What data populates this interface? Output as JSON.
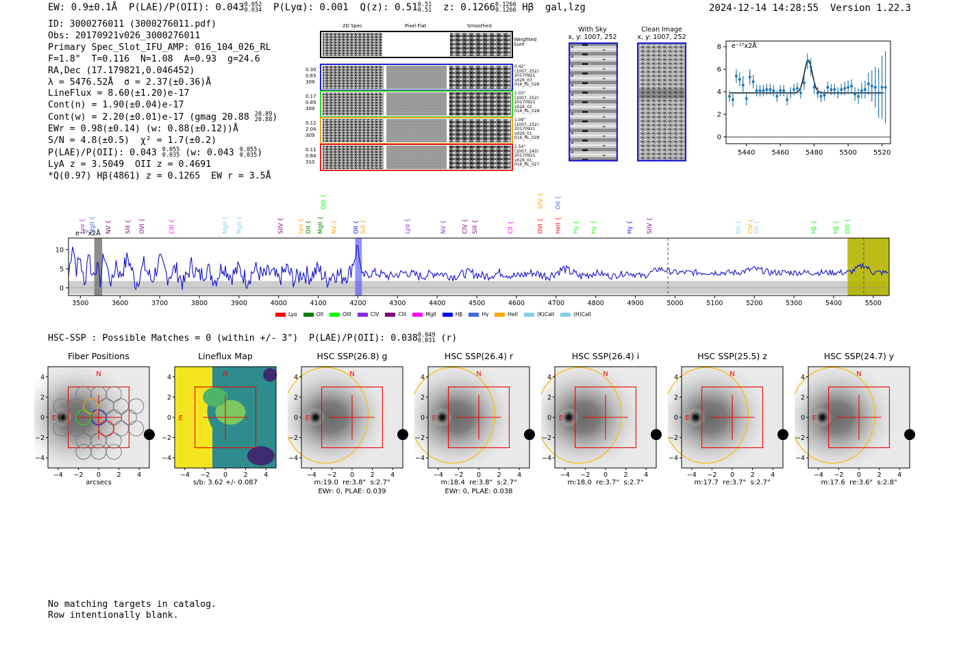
{
  "header": {
    "ew": "EW: 0.9±0.1Å",
    "plae": "P(LAE)/P(OII): 0.043",
    "plae_hi": "0.052",
    "plae_lo": "0.034",
    "plya": "P(Lyα): 0.001",
    "qz": "Q(z): 0.51",
    "qz_hi": "0.51",
    "qz_lo": "0.51",
    "z": "z: 0.1266",
    "z_hi": "0.1266",
    "z_lo": "0.1266",
    "z_tail": "Hβ  gal,lzg",
    "timestamp": "2024-12-14 14:28:55",
    "version": "Version 1.22.3"
  },
  "info": {
    "id": "ID: 3000276011 (3000276011.pdf)",
    "obs": "Obs: 20170921v026_3000276011",
    "primary": "Primary Spec_Slot_IFU_AMP: 016_104_026_RL",
    "fparams": "F=1.8\"  T=0.116  N=1.08  A=0.93  g=24.6",
    "radec": "RA,Dec (17.179821,0.046452)",
    "lambda": "λ = 5476.52Å  σ = 2.37(±0.36)Å",
    "lineflux": "LineFlux = 8.60(±1.20)e-17",
    "contn": "Cont(n) = 1.90(±0.04)e-17",
    "contw": "Cont(w) = 2.20(±0.01)e-17 (gmag 20.88",
    "contw_hi": "20.89",
    "contw_lo": "20.88",
    "contw_tail": ")",
    "ewr": "EWr = 0.98(±0.14) (w: 0.88(±0.12))Å",
    "sn": "S/N = 4.8(±0.5)  χ² = 1.7(±0.2)",
    "plae": "P(LAE)/P(OII): 0.043",
    "plae_hi": "0.055",
    "plae_lo": "0.035",
    "plae_w": " (w: 0.043",
    "plae_w_hi": "0.055",
    "plae_w_lo": "0.035",
    "plae_tail": ")",
    "lya": "LyA z = 3.5049  OII z = 0.4691",
    "q": "*Q(0.97) Hβ(4861) z = 0.1265  EW r = 3.5Å"
  },
  "cutouts": {
    "col_2dspec": "2D Spec",
    "col_pixflat": "Pixel Flat",
    "col_smoothed": "Smoothed",
    "weighted_sum": "Weighted\nSum",
    "rows": [
      {
        "left": [
          "0.30",
          "0.65",
          "309"
        ],
        "right": [
          "0.42\"",
          "(1007, 252)",
          "20170921",
          "v026_03",
          "016_RL_028"
        ],
        "color": "#1f1fcc"
      },
      {
        "left": [
          "0.17",
          "0.85",
          "309"
        ],
        "right": [
          "1.03\"",
          "(1007, 252)",
          "20170921",
          "v026_02",
          "016_RL_028"
        ],
        "color": "#2bd12b"
      },
      {
        "left": [
          "0.12",
          "2.04",
          "309"
        ],
        "right": [
          "1.09\"",
          "(1007, 252)",
          "20170921",
          "v026_01",
          "016_RL_028"
        ],
        "color": "#f0a020"
      },
      {
        "left": [
          "0.11",
          "0.84",
          "310"
        ],
        "right": [
          "1.54\"",
          "(1007, 243)",
          "20170921",
          "v026_01",
          "016_RL_027"
        ],
        "color": "#e02020"
      }
    ]
  },
  "sky": {
    "with_sky": "With Sky",
    "with_sky_xy": "x, y: 1007, 252",
    "clean": "Clean Image",
    "clean_xy": "x, y: 1007, 252"
  },
  "zoom_chart": {
    "ylabel": "e⁻¹⁷x2Å"
  },
  "full_spectrum": {
    "ylabel": "e⁻¹⁷x2Å",
    "legend": [
      {
        "name": "Lyα",
        "color": "#ff0000"
      },
      {
        "name": "OII",
        "color": "#008000"
      },
      {
        "name": "OIII",
        "color": "#00ff00"
      },
      {
        "name": "CIV",
        "color": "#8a2be2"
      },
      {
        "name": "CIII",
        "color": "#800080"
      },
      {
        "name": "MgII",
        "color": "#ff00ff"
      },
      {
        "name": "Hβ",
        "color": "#0000ff"
      },
      {
        "name": "Hγ",
        "color": "#4169e1"
      },
      {
        "name": "HeII",
        "color": "#ffa500"
      },
      {
        "name": "(K)CaII",
        "color": "#87ceeb"
      },
      {
        "name": "(H)CaII",
        "color": "#87ceeb"
      }
    ],
    "line_labels": [
      {
        "name": "Lyα",
        "x": 3510,
        "color": "#8a2be2",
        "row": 0
      },
      {
        "name": "MgII",
        "x": 3535,
        "color": "#4169e1",
        "row": 0
      },
      {
        "name": "NV",
        "x": 3575,
        "color": "#800080",
        "row": 0
      },
      {
        "name": "SiII",
        "x": 3625,
        "color": "#800080",
        "row": 0
      },
      {
        "name": "OVI",
        "x": 3660,
        "color": "#800080",
        "row": 0
      },
      {
        "name": "CIII",
        "x": 3735,
        "color": "#ff00ff",
        "row": 0
      },
      {
        "name": "MgII",
        "x": 3870,
        "color": "#87ceeb",
        "row": 0
      },
      {
        "name": "MgII",
        "x": 3905,
        "color": "#87ceeb",
        "row": 0
      },
      {
        "name": "SiIV",
        "x": 4010,
        "color": "#800080",
        "row": 0
      },
      {
        "name": "Lyα",
        "x": 4060,
        "color": "#ffa500",
        "row": 0
      },
      {
        "name": "OII",
        "x": 4080,
        "color": "#008000",
        "row": 0
      },
      {
        "name": "MgII",
        "x": 4110,
        "color": "#008000",
        "row": 0
      },
      {
        "name": "OIII",
        "x": 4118,
        "color": "#00ff00",
        "row": 1
      },
      {
        "name": "NV",
        "x": 4145,
        "color": "#ffa500",
        "row": 0
      },
      {
        "name": "OII",
        "x": 4200,
        "color": "#0000ff",
        "row": 0
      },
      {
        "name": "SiII",
        "x": 4218,
        "color": "#ffa500",
        "row": 0
      },
      {
        "name": "Lyα",
        "x": 4330,
        "color": "#8a2be2",
        "row": 0
      },
      {
        "name": "NV",
        "x": 4420,
        "color": "#8a2be2",
        "row": 0
      },
      {
        "name": "CIV",
        "x": 4475,
        "color": "#800080",
        "row": 0
      },
      {
        "name": "SiII",
        "x": 4500,
        "color": "#800080",
        "row": 0
      },
      {
        "name": "CII",
        "x": 4590,
        "color": "#ff00ff",
        "row": 0
      },
      {
        "name": "OVI",
        "x": 4665,
        "color": "#ff0000",
        "row": 0
      },
      {
        "name": "SiIV",
        "x": 4665,
        "color": "#ffa500",
        "row": 1
      },
      {
        "name": "HeII",
        "x": 4710,
        "color": "#ff0000",
        "row": 0
      },
      {
        "name": "OII",
        "x": 4710,
        "color": "#4169e1",
        "row": 1
      },
      {
        "name": "Hγ",
        "x": 4755,
        "color": "#00ff00",
        "row": 0
      },
      {
        "name": "Hγ",
        "x": 4800,
        "color": "#00ff00",
        "row": 0
      },
      {
        "name": "Hγ",
        "x": 4890,
        "color": "#0000ff",
        "row": 0
      },
      {
        "name": "SiIV",
        "x": 4940,
        "color": "#800080",
        "row": 0
      },
      {
        "name": "OII",
        "x": 5165,
        "color": "#87ceeb",
        "row": 0
      },
      {
        "name": "CIV",
        "x": 5195,
        "color": "#ffa500",
        "row": 0
      },
      {
        "name": "OII",
        "x": 5210,
        "color": "#87ceeb",
        "row": 0
      },
      {
        "name": "Hβ",
        "x": 5355,
        "color": "#00ff00",
        "row": 0
      },
      {
        "name": "Hβ",
        "x": 5410,
        "color": "#00ff00",
        "row": 0
      },
      {
        "name": "OIII",
        "x": 5440,
        "color": "#00ff00",
        "row": 0
      }
    ]
  },
  "hsc_line": {
    "text": "HSC-SSP : Possible Matches = 0 (within +/- 3\")  P(LAE)/P(OII): 0.038",
    "hi": "0.049",
    "lo": "0.031",
    "tail": " (r)"
  },
  "thumbnails": [
    {
      "title": "Fiber Positions",
      "caption1": "arcsecs",
      "caption2": ""
    },
    {
      "title": "Lineflux Map",
      "caption1": "s/b: 3.62 +/- 0.087",
      "caption2": ""
    },
    {
      "title": "HSC SSP(26.8) g",
      "caption1": "m:19.0  re:3.8\"  s:2.7\"",
      "caption2": "EWr: 0, PLAE: 0.039"
    },
    {
      "title": "HSC SSP(26.4) r",
      "caption1": "m:18.4  re:3.8\"  s:2.7\"",
      "caption2": "EWr: 0, PLAE: 0.038"
    },
    {
      "title": "HSC SSP(26.4) i",
      "caption1": "m:18.0  re:3.7\"  s:2.7\"",
      "caption2": ""
    },
    {
      "title": "HSC SSP(25.5) z",
      "caption1": "m:17.7  re:3.7\"  s:2.7\"",
      "caption2": ""
    },
    {
      "title": "HSC SSP(24.7) y",
      "caption1": "m:17.6  re:3.6\"  s:2.8\"",
      "caption2": ""
    }
  ],
  "thumb_axis": {
    "ticks": [
      "-4",
      "-2",
      "0",
      "2",
      "4"
    ],
    "north": "N",
    "east": "E"
  },
  "footer": {
    "line1": "No matching targets in catalog.",
    "line2": "Row intentionally blank."
  },
  "chart_data": [
    {
      "type": "scatter",
      "title": "",
      "xlabel": "",
      "ylabel": "e⁻¹⁷x2Å",
      "xlim": [
        5428,
        5525
      ],
      "ylim": [
        -0.6,
        8.5
      ],
      "xticks": [
        5440,
        5460,
        5480,
        5500,
        5520
      ],
      "yticks": [
        0,
        2,
        4,
        6,
        8
      ],
      "series": [
        {
          "x": [
            5430,
            5432,
            5434,
            5436,
            5438,
            5440,
            5442,
            5444,
            5446,
            5448,
            5450,
            5452,
            5454,
            5456,
            5458,
            5460,
            5462,
            5464,
            5466,
            5468,
            5470,
            5472,
            5474,
            5476,
            5478,
            5480,
            5482,
            5484,
            5486,
            5488,
            5490,
            5492,
            5494,
            5496,
            5498,
            5500,
            5502,
            5504,
            5506,
            5508,
            5510,
            5512,
            5514,
            5516,
            5518,
            5520,
            5522
          ],
          "y": [
            3.6,
            3.3,
            5.4,
            5.1,
            4.6,
            3.4,
            5.3,
            4.9,
            4.1,
            4.1,
            4.1,
            4.2,
            4.2,
            4.1,
            3.6,
            4.1,
            4.1,
            3.3,
            3.9,
            4.2,
            4.3,
            3.9,
            4.8,
            6.7,
            6.2,
            4.4,
            3.9,
            3.6,
            3.7,
            4.4,
            4.2,
            4.2,
            3.9,
            4.2,
            4.3,
            4.4,
            4.5,
            3.8,
            3.6,
            4.1,
            4.2,
            4.7,
            4.5,
            4.4,
            3.9,
            4.4,
            4.4
          ],
          "err": [
            0.5,
            0.6,
            0.6,
            0.6,
            0.8,
            0.6,
            0.7,
            0.6,
            0.5,
            0.5,
            0.5,
            0.5,
            0.5,
            0.5,
            0.5,
            0.5,
            0.5,
            0.5,
            0.5,
            0.5,
            0.5,
            0.5,
            0.6,
            0.7,
            0.8,
            0.6,
            0.5,
            0.5,
            0.5,
            0.5,
            0.5,
            0.5,
            0.5,
            0.5,
            0.6,
            0.6,
            0.6,
            0.6,
            0.7,
            0.7,
            0.8,
            1.0,
            1.4,
            1.8,
            2.2,
            2.8,
            3.2
          ]
        }
      ],
      "fit": {
        "baseline": 3.9,
        "peak": 6.8,
        "center": 5476.5,
        "sigma": 2.37
      }
    },
    {
      "type": "line",
      "title": "",
      "xlabel": "",
      "ylabel": "e⁻¹⁷x2Å",
      "xlim": [
        3470,
        5540
      ],
      "ylim": [
        -2,
        13
      ],
      "xticks": [
        3500,
        3600,
        3700,
        3800,
        3900,
        4000,
        4100,
        4200,
        4300,
        4400,
        4500,
        4600,
        4700,
        4800,
        4900,
        5000,
        5100,
        5200,
        5300,
        5400,
        5500
      ],
      "yticks": [
        0,
        5,
        10
      ],
      "series": [
        {
          "name": "flux",
          "points": [
            [
              3470,
              3
            ],
            [
              3480,
              12
            ],
            [
              3490,
              5
            ],
            [
              3500,
              8
            ],
            [
              3510,
              0
            ],
            [
              3520,
              10
            ],
            [
              3530,
              3
            ],
            [
              3540,
              6
            ],
            [
              3550,
              2
            ],
            [
              3560,
              9
            ],
            [
              3570,
              4
            ],
            [
              3580,
              1
            ],
            [
              3590,
              7
            ],
            [
              3600,
              3
            ],
            [
              3620,
              8
            ],
            [
              3640,
              1
            ],
            [
              3660,
              6
            ],
            [
              3680,
              2
            ],
            [
              3700,
              7
            ],
            [
              3720,
              3
            ],
            [
              3740,
              5
            ],
            [
              3760,
              1
            ],
            [
              3780,
              6
            ],
            [
              3800,
              3
            ],
            [
              3820,
              5
            ],
            [
              3840,
              2
            ],
            [
              3860,
              6
            ],
            [
              3880,
              3
            ],
            [
              3900,
              5
            ],
            [
              3920,
              2
            ],
            [
              3940,
              5
            ],
            [
              3960,
              3
            ],
            [
              3980,
              4
            ],
            [
              4000,
              2
            ],
            [
              4020,
              5
            ],
            [
              4040,
              2
            ],
            [
              4060,
              4
            ],
            [
              4080,
              3
            ],
            [
              4100,
              5
            ],
            [
              4120,
              2
            ],
            [
              4140,
              4
            ],
            [
              4160,
              3
            ],
            [
              4180,
              4
            ],
            [
              4200,
              11
            ],
            [
              4210,
              3
            ],
            [
              4240,
              4
            ],
            [
              4280,
              3
            ],
            [
              4320,
              4
            ],
            [
              4360,
              3
            ],
            [
              4400,
              4
            ],
            [
              4440,
              3
            ],
            [
              4480,
              4
            ],
            [
              4520,
              3
            ],
            [
              4560,
              4
            ],
            [
              4600,
              3
            ],
            [
              4640,
              4
            ],
            [
              4680,
              3
            ],
            [
              4720,
              5
            ],
            [
              4760,
              3
            ],
            [
              4800,
              4
            ],
            [
              4840,
              3
            ],
            [
              4880,
              4
            ],
            [
              4920,
              3
            ],
            [
              4960,
              5
            ],
            [
              5000,
              4
            ],
            [
              5040,
              4
            ],
            [
              5080,
              4
            ],
            [
              5120,
              4
            ],
            [
              5160,
              4
            ],
            [
              5200,
              5
            ],
            [
              5240,
              4
            ],
            [
              5280,
              4
            ],
            [
              5320,
              4
            ],
            [
              5360,
              4
            ],
            [
              5400,
              4
            ],
            [
              5440,
              4
            ],
            [
              5476,
              6
            ],
            [
              5500,
              4
            ],
            [
              5540,
              4
            ]
          ]
        }
      ],
      "highlight_bands": [
        [
          3535,
          3555
        ],
        [
          4193,
          4210
        ],
        [
          5435,
          5540
        ]
      ],
      "marker_lines": [
        4982,
        5476
      ]
    }
  ]
}
